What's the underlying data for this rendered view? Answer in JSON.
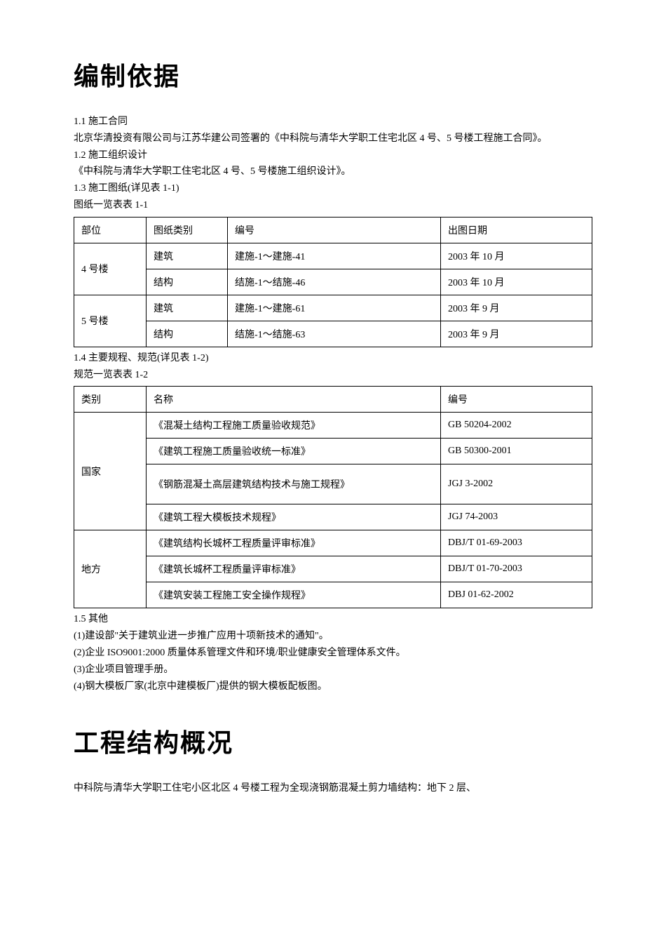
{
  "heading1": "编制依据",
  "s1_1": "1.1 施工合同",
  "s1_1_body": "北京华清投资有限公司与江苏华建公司签署的《中科院与清华大学职工住宅北区 4 号、5 号楼工程施工合同》。",
  "s1_2": "1.2 施工组织设计",
  "s1_2_body": "《中科院与清华大学职工住宅北区 4 号、5 号楼施工组织设计》。",
  "s1_3": "1.3 施工图纸(详见表 1-1)",
  "table1_caption": "图纸一览表表 1-1",
  "table1": {
    "headers": [
      "部位",
      "图纸类别",
      "编号",
      "出图日期"
    ],
    "rows": [
      {
        "section": "4 号楼",
        "type": "建筑",
        "num": "建施-1～建施-41",
        "date": "2003 年 10 月"
      },
      {
        "section": "",
        "type": "结构",
        "num": "结施-1～结施-46",
        "date": "2003 年 10 月"
      },
      {
        "section": "5 号楼",
        "type": "建筑",
        "num": "建施-1～建施-61",
        "date": "2003 年 9 月"
      },
      {
        "section": "",
        "type": "结构",
        "num": "结施-1～结施-63",
        "date": "2003 年 9 月"
      }
    ]
  },
  "s1_4": "1.4 主要规程、规范(详见表 1-2)",
  "table2_caption": "规范一览表表 1-2",
  "table2": {
    "headers": [
      "类别",
      "名称",
      "编号"
    ],
    "rows": [
      {
        "cat": "国家",
        "name": "《混凝土结构工程施工质量验收规范》",
        "code": "GB 50204-2002"
      },
      {
        "cat": "",
        "name": "《建筑工程施工质量验收统一标准》",
        "code": "GB 50300-2001"
      },
      {
        "cat": "",
        "name": "《钢筋混凝土高层建筑结构技术与施工规程》",
        "code": "JGJ 3-2002",
        "tall": true
      },
      {
        "cat": "",
        "name": "《建筑工程大模板技术规程》",
        "code": "JGJ 74-2003"
      },
      {
        "cat": "地方",
        "name": "《建筑结构长城杯工程质量评审标准》",
        "code": "DBJ/T 01-69-2003"
      },
      {
        "cat": "",
        "name": "《建筑长城杯工程质量评审标准》",
        "code": "DBJ/T 01-70-2003"
      },
      {
        "cat": "",
        "name": "《建筑安装工程施工安全操作规程》",
        "code": "DBJ 01-62-2002"
      }
    ]
  },
  "s1_5": "1.5 其他",
  "s1_5_items": [
    "(1)建设部\"关于建筑业进一步推广应用十项新技术的通知\"。",
    "(2)企业 ISO9001:2000 质量体系管理文件和环境/职业健康安全管理体系文件。",
    "(3)企业项目管理手册。",
    "(4)钢大模板厂家(北京中建模板厂)提供的钢大模板配板图。"
  ],
  "heading2": "工程结构概况",
  "h2_body": "中科院与清华大学职工住宅小区北区 4 号楼工程为全现浇钢筋混凝土剪力墙结构：地下 2 层、"
}
